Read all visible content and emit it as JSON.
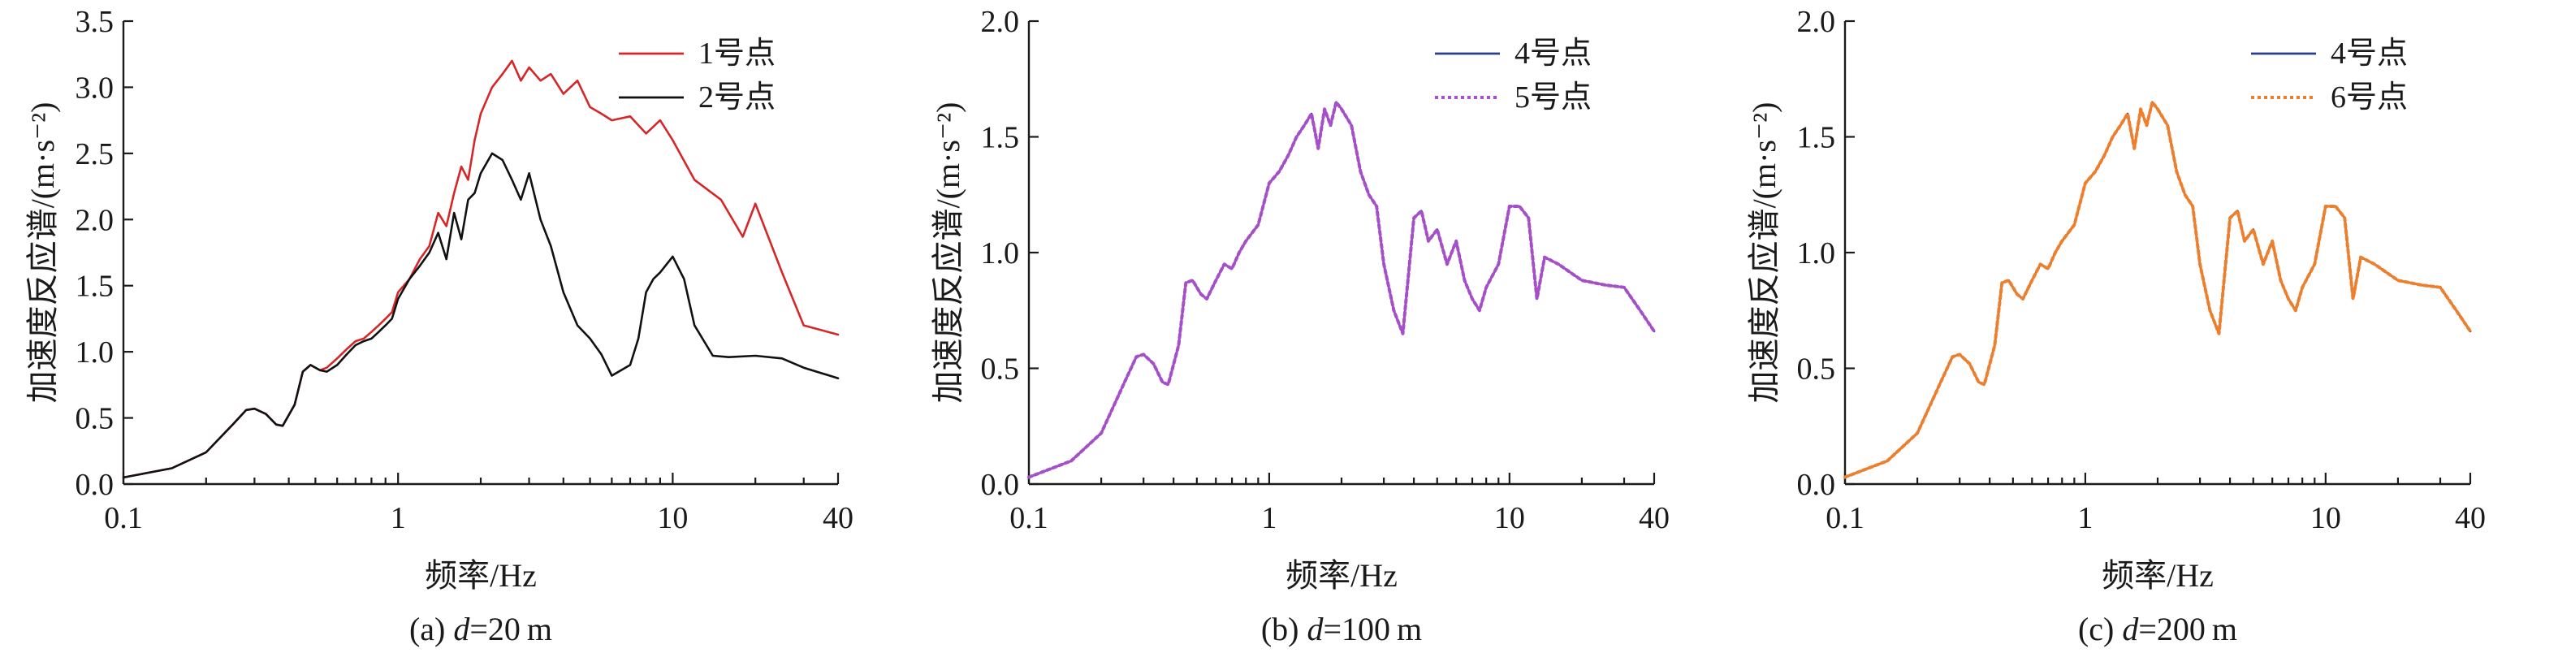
{
  "chart_data": [
    {
      "type": "line",
      "caption": {
        "prefix": "(a) ",
        "var": "d",
        "suffix": "=20 m"
      },
      "xlabel": "频率/Hz",
      "ylabel": "加速度反应谱/(m·s⁻²)",
      "xscale": "log",
      "xlim": [
        0.1,
        40
      ],
      "ylim": [
        0.0,
        3.5
      ],
      "xticks": [
        0.1,
        1,
        10,
        40
      ],
      "xtick_labels": [
        "0.1",
        "1",
        "10",
        "40"
      ],
      "yticks": [
        0.0,
        0.5,
        1.0,
        1.5,
        2.0,
        2.5,
        3.0,
        3.5
      ],
      "ytick_labels": [
        "0.0",
        "0.5",
        "1.0",
        "1.5",
        "2.0",
        "2.5",
        "3.0",
        "3.5"
      ],
      "legend_position": "top-right",
      "series": [
        {
          "name": "1号点",
          "color": "#d62728",
          "dash": "",
          "x": [
            0.1,
            0.15,
            0.2,
            0.25,
            0.28,
            0.3,
            0.33,
            0.36,
            0.38,
            0.42,
            0.45,
            0.48,
            0.52,
            0.55,
            0.6,
            0.65,
            0.7,
            0.75,
            0.8,
            0.85,
            0.9,
            0.95,
            1.0,
            1.1,
            1.2,
            1.3,
            1.4,
            1.5,
            1.6,
            1.7,
            1.8,
            1.9,
            2.0,
            2.2,
            2.4,
            2.6,
            2.8,
            3.0,
            3.3,
            3.6,
            4.0,
            4.5,
            5.0,
            5.5,
            6.0,
            7.0,
            8.0,
            9.0,
            10.0,
            12.0,
            15.0,
            18.0,
            20.0,
            25.0,
            30.0,
            40.0
          ],
          "y": [
            0.05,
            0.12,
            0.24,
            0.45,
            0.56,
            0.57,
            0.53,
            0.45,
            0.44,
            0.6,
            0.85,
            0.9,
            0.86,
            0.88,
            0.95,
            1.02,
            1.08,
            1.1,
            1.15,
            1.2,
            1.25,
            1.3,
            1.45,
            1.55,
            1.7,
            1.8,
            2.05,
            1.95,
            2.2,
            2.4,
            2.3,
            2.6,
            2.8,
            3.0,
            3.1,
            3.2,
            3.05,
            3.15,
            3.05,
            3.1,
            2.95,
            3.05,
            2.85,
            2.8,
            2.75,
            2.78,
            2.65,
            2.75,
            2.6,
            2.3,
            2.15,
            1.87,
            2.12,
            1.6,
            1.2,
            1.13
          ]
        },
        {
          "name": "2号点",
          "color": "#111111",
          "dash": "",
          "x": [
            0.1,
            0.15,
            0.2,
            0.25,
            0.28,
            0.3,
            0.33,
            0.36,
            0.38,
            0.42,
            0.45,
            0.48,
            0.52,
            0.55,
            0.6,
            0.65,
            0.7,
            0.75,
            0.8,
            0.85,
            0.9,
            0.95,
            1.0,
            1.1,
            1.2,
            1.3,
            1.4,
            1.5,
            1.6,
            1.7,
            1.8,
            1.9,
            2.0,
            2.2,
            2.4,
            2.6,
            2.8,
            3.0,
            3.3,
            3.6,
            4.0,
            4.5,
            5.0,
            5.5,
            6.0,
            7.0,
            7.5,
            8.0,
            8.5,
            9.0,
            10.0,
            11.0,
            12.0,
            14.0,
            16.0,
            20.0,
            25.0,
            30.0,
            40.0
          ],
          "y": [
            0.05,
            0.12,
            0.24,
            0.45,
            0.56,
            0.57,
            0.53,
            0.45,
            0.44,
            0.6,
            0.85,
            0.9,
            0.86,
            0.85,
            0.9,
            0.98,
            1.05,
            1.08,
            1.1,
            1.15,
            1.2,
            1.25,
            1.4,
            1.55,
            1.65,
            1.75,
            1.9,
            1.7,
            2.05,
            1.85,
            2.15,
            2.2,
            2.35,
            2.5,
            2.45,
            2.3,
            2.15,
            2.35,
            2.0,
            1.8,
            1.45,
            1.2,
            1.1,
            0.98,
            0.82,
            0.9,
            1.1,
            1.45,
            1.55,
            1.6,
            1.72,
            1.55,
            1.2,
            0.97,
            0.96,
            0.97,
            0.95,
            0.88,
            0.8
          ]
        }
      ]
    },
    {
      "type": "line",
      "caption": {
        "prefix": "(b) ",
        "var": "d",
        "suffix": "=100 m"
      },
      "xlabel": "频率/Hz",
      "ylabel": "加速度反应谱/(m·s⁻²)",
      "xscale": "log",
      "xlim": [
        0.1,
        40
      ],
      "ylim": [
        0.0,
        2.0
      ],
      "xticks": [
        0.1,
        1,
        10,
        40
      ],
      "xtick_labels": [
        "0.1",
        "1",
        "10",
        "40"
      ],
      "yticks": [
        0.0,
        0.5,
        1.0,
        1.5,
        2.0
      ],
      "ytick_labels": [
        "0.0",
        "0.5",
        "1.0",
        "1.5",
        "2.0"
      ],
      "legend_position": "top-right",
      "series": [
        {
          "name": "4号点",
          "color": "#2b3f8f",
          "dash": "",
          "x": [
            0.1,
            0.15,
            0.2,
            0.25,
            0.28,
            0.3,
            0.33,
            0.36,
            0.38,
            0.42,
            0.45,
            0.48,
            0.52,
            0.55,
            0.6,
            0.65,
            0.7,
            0.75,
            0.8,
            0.9,
            1.0,
            1.1,
            1.2,
            1.3,
            1.4,
            1.5,
            1.6,
            1.7,
            1.8,
            1.9,
            2.0,
            2.2,
            2.4,
            2.6,
            2.8,
            3.0,
            3.3,
            3.6,
            4.0,
            4.3,
            4.6,
            5.0,
            5.5,
            6.0,
            6.5,
            7.0,
            7.5,
            8.0,
            9.0,
            10.0,
            11.0,
            12.0,
            13.0,
            14.0,
            16.0,
            20.0,
            25.0,
            30.0,
            35.0,
            40.0
          ],
          "y": [
            0.03,
            0.1,
            0.22,
            0.44,
            0.55,
            0.56,
            0.52,
            0.44,
            0.43,
            0.6,
            0.87,
            0.88,
            0.82,
            0.8,
            0.88,
            0.95,
            0.93,
            1.0,
            1.05,
            1.12,
            1.3,
            1.35,
            1.42,
            1.5,
            1.55,
            1.6,
            1.45,
            1.62,
            1.55,
            1.65,
            1.62,
            1.55,
            1.35,
            1.25,
            1.2,
            0.95,
            0.75,
            0.65,
            1.15,
            1.18,
            1.05,
            1.1,
            0.95,
            1.05,
            0.88,
            0.8,
            0.75,
            0.85,
            0.95,
            1.2,
            1.2,
            1.15,
            0.8,
            0.98,
            0.95,
            0.88,
            0.86,
            0.85,
            0.75,
            0.66
          ]
        },
        {
          "name": "5号点",
          "color": "#a64fc9",
          "dash": "4,4",
          "x": [
            0.1,
            0.15,
            0.2,
            0.25,
            0.28,
            0.3,
            0.33,
            0.36,
            0.38,
            0.42,
            0.45,
            0.48,
            0.52,
            0.55,
            0.6,
            0.65,
            0.7,
            0.75,
            0.8,
            0.9,
            1.0,
            1.1,
            1.2,
            1.3,
            1.4,
            1.5,
            1.6,
            1.7,
            1.8,
            1.9,
            2.0,
            2.2,
            2.4,
            2.6,
            2.8,
            3.0,
            3.3,
            3.6,
            4.0,
            4.3,
            4.6,
            5.0,
            5.5,
            6.0,
            6.5,
            7.0,
            7.5,
            8.0,
            9.0,
            10.0,
            11.0,
            12.0,
            13.0,
            14.0,
            16.0,
            20.0,
            25.0,
            30.0,
            35.0,
            40.0
          ],
          "y": [
            0.03,
            0.1,
            0.22,
            0.44,
            0.55,
            0.56,
            0.52,
            0.44,
            0.43,
            0.6,
            0.87,
            0.88,
            0.82,
            0.8,
            0.88,
            0.95,
            0.93,
            1.0,
            1.05,
            1.12,
            1.3,
            1.35,
            1.42,
            1.5,
            1.55,
            1.6,
            1.45,
            1.62,
            1.55,
            1.65,
            1.62,
            1.55,
            1.35,
            1.25,
            1.2,
            0.95,
            0.75,
            0.65,
            1.15,
            1.18,
            1.05,
            1.1,
            0.95,
            1.05,
            0.88,
            0.8,
            0.75,
            0.85,
            0.95,
            1.2,
            1.2,
            1.15,
            0.8,
            0.98,
            0.95,
            0.88,
            0.86,
            0.85,
            0.75,
            0.66
          ]
        }
      ]
    },
    {
      "type": "line",
      "caption": {
        "prefix": "(c) ",
        "var": "d",
        "suffix": "=200 m"
      },
      "xlabel": "频率/Hz",
      "ylabel": "加速度反应谱/(m·s⁻²)",
      "xscale": "log",
      "xlim": [
        0.1,
        40
      ],
      "ylim": [
        0.0,
        2.0
      ],
      "xticks": [
        0.1,
        1,
        10,
        40
      ],
      "xtick_labels": [
        "0.1",
        "1",
        "10",
        "40"
      ],
      "yticks": [
        0.0,
        0.5,
        1.0,
        1.5,
        2.0
      ],
      "ytick_labels": [
        "0.0",
        "0.5",
        "1.0",
        "1.5",
        "2.0"
      ],
      "legend_position": "top-right",
      "series": [
        {
          "name": "4号点",
          "color": "#2b3f8f",
          "dash": "",
          "x": [
            0.1,
            0.15,
            0.2,
            0.25,
            0.28,
            0.3,
            0.33,
            0.36,
            0.38,
            0.42,
            0.45,
            0.48,
            0.52,
            0.55,
            0.6,
            0.65,
            0.7,
            0.75,
            0.8,
            0.9,
            1.0,
            1.1,
            1.2,
            1.3,
            1.4,
            1.5,
            1.6,
            1.7,
            1.8,
            1.9,
            2.0,
            2.2,
            2.4,
            2.6,
            2.8,
            3.0,
            3.3,
            3.6,
            4.0,
            4.3,
            4.6,
            5.0,
            5.5,
            6.0,
            6.5,
            7.0,
            7.5,
            8.0,
            9.0,
            10.0,
            11.0,
            12.0,
            13.0,
            14.0,
            16.0,
            20.0,
            25.0,
            30.0,
            35.0,
            40.0
          ],
          "y": [
            0.03,
            0.1,
            0.22,
            0.44,
            0.55,
            0.56,
            0.52,
            0.44,
            0.43,
            0.6,
            0.87,
            0.88,
            0.82,
            0.8,
            0.88,
            0.95,
            0.93,
            1.0,
            1.05,
            1.12,
            1.3,
            1.35,
            1.42,
            1.5,
            1.55,
            1.6,
            1.45,
            1.62,
            1.55,
            1.65,
            1.62,
            1.55,
            1.35,
            1.25,
            1.2,
            0.95,
            0.75,
            0.65,
            1.15,
            1.18,
            1.05,
            1.1,
            0.95,
            1.05,
            0.88,
            0.8,
            0.75,
            0.85,
            0.95,
            1.2,
            1.2,
            1.15,
            0.8,
            0.98,
            0.95,
            0.88,
            0.86,
            0.85,
            0.75,
            0.66
          ]
        },
        {
          "name": "6号点",
          "color": "#f07f2b",
          "dash": "4,4",
          "x": [
            0.1,
            0.15,
            0.2,
            0.25,
            0.28,
            0.3,
            0.33,
            0.36,
            0.38,
            0.42,
            0.45,
            0.48,
            0.52,
            0.55,
            0.6,
            0.65,
            0.7,
            0.75,
            0.8,
            0.9,
            1.0,
            1.1,
            1.2,
            1.3,
            1.4,
            1.5,
            1.6,
            1.7,
            1.8,
            1.9,
            2.0,
            2.2,
            2.4,
            2.6,
            2.8,
            3.0,
            3.3,
            3.6,
            4.0,
            4.3,
            4.6,
            5.0,
            5.5,
            6.0,
            6.5,
            7.0,
            7.5,
            8.0,
            9.0,
            10.0,
            11.0,
            12.0,
            13.0,
            14.0,
            16.0,
            20.0,
            25.0,
            30.0,
            35.0,
            40.0
          ],
          "y": [
            0.03,
            0.1,
            0.22,
            0.44,
            0.55,
            0.56,
            0.52,
            0.44,
            0.43,
            0.6,
            0.87,
            0.88,
            0.82,
            0.8,
            0.88,
            0.95,
            0.93,
            1.0,
            1.05,
            1.12,
            1.3,
            1.35,
            1.42,
            1.5,
            1.55,
            1.6,
            1.45,
            1.62,
            1.55,
            1.65,
            1.62,
            1.55,
            1.35,
            1.25,
            1.2,
            0.95,
            0.75,
            0.65,
            1.15,
            1.18,
            1.05,
            1.1,
            0.95,
            1.05,
            0.88,
            0.8,
            0.75,
            0.85,
            0.95,
            1.2,
            1.2,
            1.15,
            0.8,
            0.98,
            0.95,
            0.88,
            0.86,
            0.85,
            0.75,
            0.66
          ]
        }
      ]
    }
  ]
}
